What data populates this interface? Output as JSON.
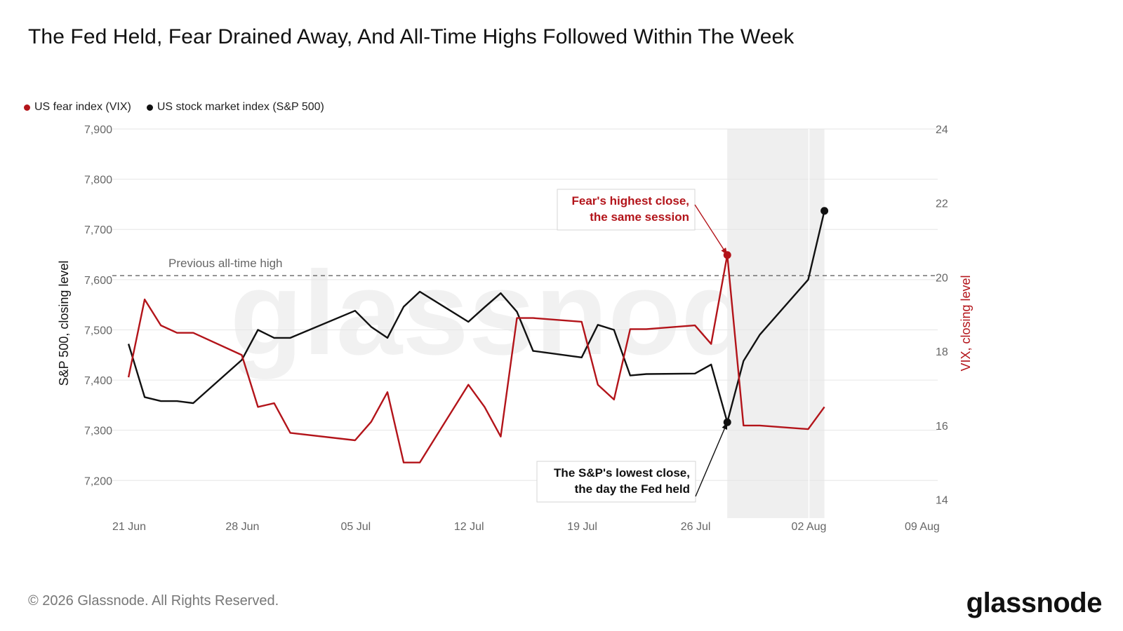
{
  "title": "The Fed Held, Fear Drained Away, And All-Time Highs Followed Within The Week",
  "legend": [
    {
      "label": "US fear index (VIX)",
      "color": "#b3141a"
    },
    {
      "label": "US stock market index (S&P 500)",
      "color": "#111111"
    }
  ],
  "watermark": "glassnode",
  "footer": {
    "copyright": "© 2026 Glassnode. All Rights Reserved.",
    "brand": "glassnode"
  },
  "chart_data": {
    "type": "line",
    "x_ticks": [
      "21 Jun",
      "28 Jun",
      "05 Jul",
      "12 Jul",
      "19 Jul",
      "26 Jul",
      "02 Aug",
      "09 Aug"
    ],
    "xlim": [
      "2026-06-21",
      "2026-08-11"
    ],
    "left_axis": {
      "label": "S&P 500, closing level",
      "ticks": [
        "7,200",
        "7,300",
        "7,400",
        "7,500",
        "7,600",
        "7,700",
        "7,800",
        "7,900"
      ],
      "ylim": [
        7125,
        7900
      ]
    },
    "right_axis": {
      "label": "VIX, closing level",
      "ticks": [
        "14",
        "16",
        "18",
        "20",
        "22",
        "24"
      ],
      "ylim": [
        13.5,
        24
      ]
    },
    "reference_line": {
      "label": "Previous all-time high",
      "value": 7608,
      "axis": "left"
    },
    "shaded_region": [
      "2026-07-29",
      "2026-08-04"
    ],
    "series": [
      {
        "name": "US stock market index (S&P 500)",
        "axis": "left",
        "color": "#111111",
        "points": [
          [
            "2026-06-22",
            7472
          ],
          [
            "2026-06-23",
            7366
          ],
          [
            "2026-06-24",
            7358
          ],
          [
            "2026-06-25",
            7358
          ],
          [
            "2026-06-26",
            7354
          ],
          [
            "2026-06-29",
            7440
          ],
          [
            "2026-06-30",
            7500
          ],
          [
            "2026-07-01",
            7484
          ],
          [
            "2026-07-02",
            7484
          ],
          [
            "2026-07-06",
            7538
          ],
          [
            "2026-07-07",
            7506
          ],
          [
            "2026-07-08",
            7484
          ],
          [
            "2026-07-09",
            7546
          ],
          [
            "2026-07-10",
            7576
          ],
          [
            "2026-07-13",
            7516
          ],
          [
            "2026-07-14",
            7545
          ],
          [
            "2026-07-15",
            7573
          ],
          [
            "2026-07-16",
            7536
          ],
          [
            "2026-07-17",
            7458
          ],
          [
            "2026-07-20",
            7445
          ],
          [
            "2026-07-21",
            7510
          ],
          [
            "2026-07-22",
            7500
          ],
          [
            "2026-07-23",
            7409
          ],
          [
            "2026-07-24",
            7412
          ],
          [
            "2026-07-27",
            7413
          ],
          [
            "2026-07-28",
            7431
          ],
          [
            "2026-07-29",
            7316
          ],
          [
            "2026-07-30",
            7438
          ],
          [
            "2026-07-31",
            7490
          ],
          [
            "2026-08-03",
            7600
          ],
          [
            "2026-08-04",
            7737
          ]
        ]
      },
      {
        "name": "US fear index (VIX)",
        "axis": "right",
        "color": "#b3141a",
        "points": [
          [
            "2026-06-22",
            17.3
          ],
          [
            "2026-06-23",
            19.4
          ],
          [
            "2026-06-24",
            18.7
          ],
          [
            "2026-06-25",
            18.5
          ],
          [
            "2026-06-26",
            18.5
          ],
          [
            "2026-06-29",
            17.9
          ],
          [
            "2026-06-30",
            16.5
          ],
          [
            "2026-07-01",
            16.6
          ],
          [
            "2026-07-02",
            15.8
          ],
          [
            "2026-07-06",
            15.6
          ],
          [
            "2026-07-07",
            16.1
          ],
          [
            "2026-07-08",
            16.9
          ],
          [
            "2026-07-09",
            15.0
          ],
          [
            "2026-07-10",
            15.0
          ],
          [
            "2026-07-13",
            17.1
          ],
          [
            "2026-07-14",
            16.5
          ],
          [
            "2026-07-15",
            15.7
          ],
          [
            "2026-07-16",
            18.9
          ],
          [
            "2026-07-17",
            18.9
          ],
          [
            "2026-07-20",
            18.8
          ],
          [
            "2026-07-21",
            17.1
          ],
          [
            "2026-07-22",
            16.7
          ],
          [
            "2026-07-23",
            18.6
          ],
          [
            "2026-07-24",
            18.6
          ],
          [
            "2026-07-27",
            18.7
          ],
          [
            "2026-07-28",
            18.2
          ],
          [
            "2026-07-29",
            20.6
          ],
          [
            "2026-07-30",
            16.0
          ],
          [
            "2026-07-31",
            16.0
          ],
          [
            "2026-08-03",
            15.9
          ],
          [
            "2026-08-04",
            16.5
          ]
        ]
      }
    ],
    "annotations": [
      {
        "lines": [
          "Fear's highest close,",
          "the same session"
        ],
        "color": "#b3141a",
        "target": {
          "series": 1,
          "x": "2026-07-29",
          "y": 20.6
        }
      },
      {
        "lines": [
          "The S&P's lowest close,",
          "the day the Fed held"
        ],
        "color": "#111111",
        "target": {
          "series": 0,
          "x": "2026-07-29",
          "y": 7316
        }
      }
    ],
    "grid": "horizontal"
  }
}
